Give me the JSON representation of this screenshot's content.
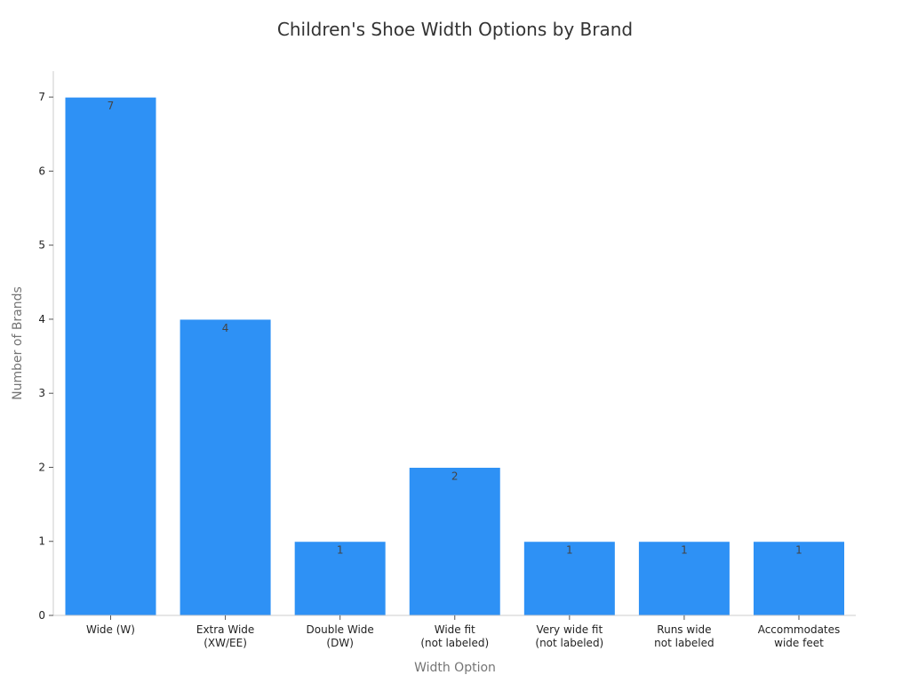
{
  "chart_data": {
    "type": "bar",
    "title": "Children's Shoe Width Options by Brand",
    "xlabel": "Width Option",
    "ylabel": "Number of Brands",
    "categories": [
      [
        "Wide (W)"
      ],
      [
        "Extra Wide",
        "(XW/EE)"
      ],
      [
        "Double Wide",
        "(DW)"
      ],
      [
        "Wide fit",
        "(not labeled)"
      ],
      [
        "Very wide fit",
        "(not labeled)"
      ],
      [
        "Runs wide",
        "not labeled"
      ],
      [
        "Accommodates",
        "wide feet"
      ]
    ],
    "values": [
      7,
      4,
      1,
      2,
      1,
      1,
      1
    ],
    "ylim": [
      0,
      7.35
    ],
    "yticks": [
      0,
      1,
      2,
      3,
      4,
      5,
      6,
      7
    ],
    "grid": false,
    "legend": "none",
    "bar_color": "#2e91f5"
  }
}
